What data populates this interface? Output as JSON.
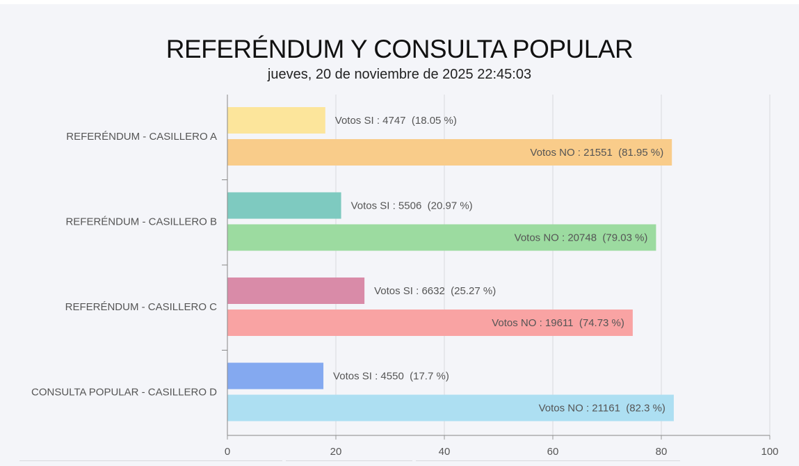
{
  "title": "REFERÉNDUM Y CONSULTA POPULAR",
  "subtitle": "jueves, 20 de noviembre de 2025 22:45:03",
  "chart_data": {
    "type": "bar",
    "orientation": "horizontal",
    "categories": [
      "REFERÉNDUM - CASILLERO A",
      "REFERÉNDUM - CASILLERO B",
      "REFERÉNDUM - CASILLERO C",
      "CONSULTA POPULAR - CASILLERO D"
    ],
    "bars": [
      [
        {
          "value": 18.05,
          "label": "Votos SI : 4747  (18.05 %)",
          "label_position": "outside",
          "color": "#fce59b"
        },
        {
          "value": 81.95,
          "label": "Votos NO : 21551  (81.95 %)",
          "label_position": "inside",
          "color": "#f9cc8a"
        }
      ],
      [
        {
          "value": 20.97,
          "label": "Votos SI : 5506  (20.97 %)",
          "label_position": "outside",
          "color": "#7ecac0"
        },
        {
          "value": 79.03,
          "label": "Votos NO : 20748  (79.03 %)",
          "label_position": "inside",
          "color": "#9cdba0"
        }
      ],
      [
        {
          "value": 25.27,
          "label": "Votos SI : 6632  (25.27 %)",
          "label_position": "outside",
          "color": "#d98ba8"
        },
        {
          "value": 74.73,
          "label": "Votos NO : 19611  (74.73 %)",
          "label_position": "inside",
          "color": "#f9a3a3"
        }
      ],
      [
        {
          "value": 17.7,
          "label": "Votos SI : 4550  (17.7 %)",
          "label_position": "outside",
          "color": "#84a9f0"
        },
        {
          "value": 82.3,
          "label": "Votos NO : 21161  (82.3 %)",
          "label_position": "inside",
          "color": "#addff2"
        }
      ]
    ],
    "xlim": [
      0,
      100
    ],
    "x_ticks": [
      0,
      20,
      40,
      60,
      80,
      100
    ],
    "grid": true,
    "legend": "none"
  }
}
